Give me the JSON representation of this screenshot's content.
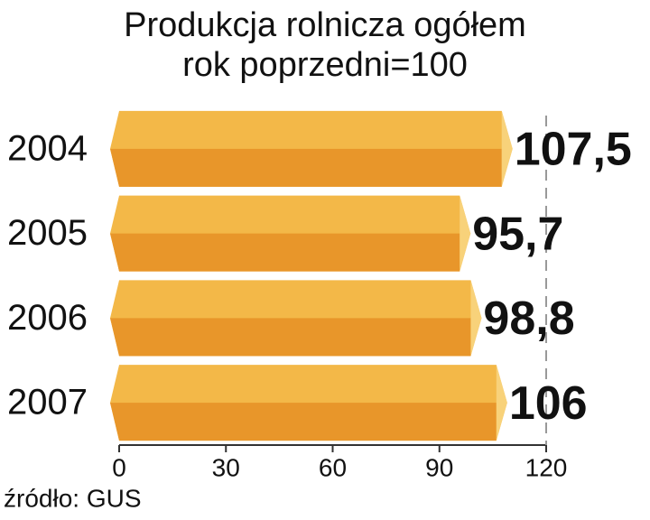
{
  "chart_data": {
    "type": "bar",
    "orientation": "horizontal",
    "title": "Produkcja rolnicza ogółem",
    "subtitle": "rok poprzedni=100",
    "categories": [
      "2004",
      "2005",
      "2006",
      "2007"
    ],
    "values": [
      107.5,
      95.7,
      98.8,
      106
    ],
    "value_labels": [
      "107,5",
      "95,7",
      "98,8",
      "106"
    ],
    "color": "#f3b848",
    "xlim": [
      0,
      120
    ],
    "xticks": [
      0,
      30,
      60,
      90,
      120
    ],
    "source": "źródło: GUS"
  }
}
